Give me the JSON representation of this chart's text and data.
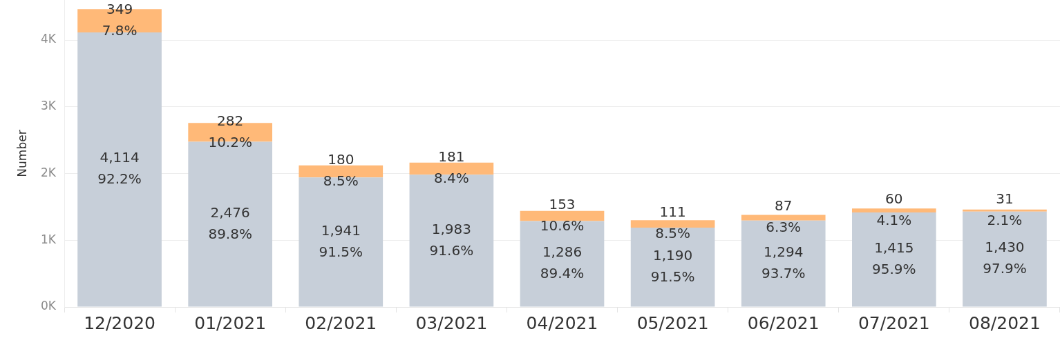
{
  "chart_data": {
    "type": "bar",
    "stacked": true,
    "ylabel": "Number",
    "categories": [
      "12/2020",
      "01/2021",
      "02/2021",
      "03/2021",
      "04/2021",
      "05/2021",
      "06/2021",
      "07/2021",
      "08/2021"
    ],
    "series": [
      {
        "color": "#c7cfd9",
        "values": [
          4114,
          2476,
          1941,
          1983,
          1286,
          1190,
          1294,
          1415,
          1430
        ],
        "value_labels": [
          "4,114\n92.2%",
          "2,476\n89.8%",
          "1,941\n91.5%",
          "1,983\n91.6%",
          "1,286\n89.4%",
          "1,190\n91.5%",
          "1,294\n93.7%",
          "1,415\n95.9%",
          "1,430\n97.9%"
        ]
      },
      {
        "color": "#ffb978",
        "values": [
          349,
          282,
          180,
          181,
          153,
          111,
          87,
          60,
          31
        ],
        "value_labels": [
          "349\n7.8%",
          "282\n10.2%",
          "180\n8.5%",
          "181\n8.4%",
          "153\n10.6%",
          "111\n8.5%",
          "87\n6.3%",
          "60\n4.1%",
          "31\n2.1%"
        ]
      }
    ],
    "ylim": [
      0,
      4600
    ],
    "yticks": [
      {
        "value": 0,
        "label": "0K"
      },
      {
        "value": 1000,
        "label": "1K"
      },
      {
        "value": 2000,
        "label": "2K"
      },
      {
        "value": 3000,
        "label": "3K"
      },
      {
        "value": 4000,
        "label": "4K"
      }
    ],
    "grid": "y"
  }
}
